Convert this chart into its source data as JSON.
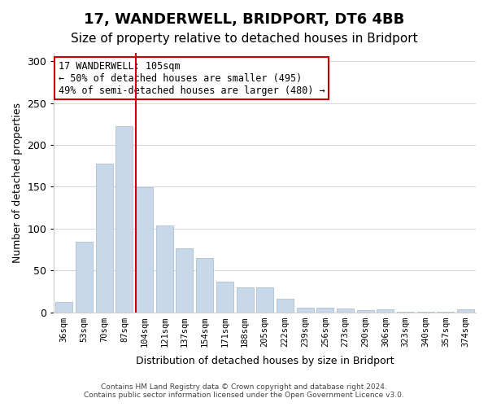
{
  "title1": "17, WANDERWELL, BRIDPORT, DT6 4BB",
  "title2": "Size of property relative to detached houses in Bridport",
  "xlabel": "Distribution of detached houses by size in Bridport",
  "ylabel": "Number of detached properties",
  "footer1": "Contains HM Land Registry data © Crown copyright and database right 2024.",
  "footer2": "Contains public sector information licensed under the Open Government Licence v3.0.",
  "categories": [
    "36sqm",
    "53sqm",
    "70sqm",
    "87sqm",
    "104sqm",
    "121sqm",
    "137sqm",
    "154sqm",
    "171sqm",
    "188sqm",
    "205sqm",
    "222sqm",
    "239sqm",
    "256sqm",
    "273sqm",
    "290sqm",
    "306sqm",
    "323sqm",
    "340sqm",
    "357sqm",
    "374sqm"
  ],
  "values": [
    12,
    84,
    178,
    222,
    149,
    104,
    76,
    65,
    37,
    30,
    30,
    16,
    5,
    5,
    4,
    2,
    3,
    1,
    1,
    1,
    3
  ],
  "bar_color": "#c8d8e8",
  "bar_edge_color": "#a0b8d0",
  "vline_x": 4,
  "vline_color": "#cc0000",
  "annotation_text": "17 WANDERWELL: 105sqm\n← 50% of detached houses are smaller (495)\n49% of semi-detached houses are larger (480) →",
  "annotation_box_color": "white",
  "annotation_box_edge_color": "#cc0000",
  "ylim": [
    0,
    310
  ],
  "yticks": [
    0,
    50,
    100,
    150,
    200,
    250,
    300
  ],
  "bg_color": "white",
  "grid_color": "#d0d8e0",
  "title1_fontsize": 13,
  "title2_fontsize": 11
}
